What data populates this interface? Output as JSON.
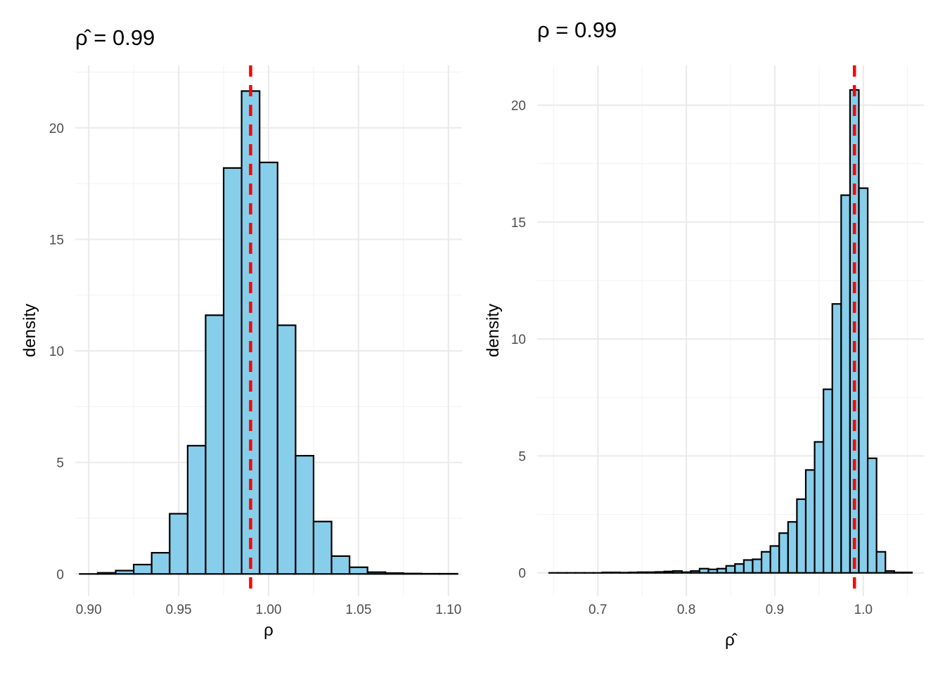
{
  "chart_data": [
    {
      "type": "bar",
      "title": "ρ̂ = 0.99",
      "xlabel": "ρ",
      "ylabel": "density",
      "bin_width": 0.01,
      "bin_centers": [
        0.9,
        0.91,
        0.92,
        0.93,
        0.94,
        0.95,
        0.96,
        0.97,
        0.98,
        0.99,
        1.0,
        1.01,
        1.02,
        1.03,
        1.04,
        1.05,
        1.06,
        1.07,
        1.08,
        1.09,
        1.1
      ],
      "values": [
        0.0,
        0.05,
        0.15,
        0.42,
        0.95,
        2.7,
        5.75,
        11.6,
        18.2,
        21.65,
        18.45,
        11.15,
        5.3,
        2.35,
        0.8,
        0.3,
        0.08,
        0.04,
        0.02,
        0.01,
        0.01
      ],
      "xlim": [
        0.8925,
        1.1075
      ],
      "ylim": [
        -1.0,
        22.8
      ],
      "x_ticks": [
        0.9,
        0.95,
        1.0,
        1.05,
        1.1
      ],
      "x_tick_labels": [
        "0.90",
        "0.95",
        "1.00",
        "1.05",
        "1.10"
      ],
      "y_ticks": [
        0,
        5,
        10,
        15,
        20
      ],
      "y_tick_labels": [
        "0",
        "5",
        "10",
        "15",
        "20"
      ],
      "reference_line": {
        "x": 0.99,
        "color": "#ff0000",
        "style": "dashed"
      },
      "bar_fill": "#87ceeb",
      "bar_stroke": "#000000",
      "grid": true
    },
    {
      "type": "bar",
      "title": "ρ = 0.99",
      "xlabel": "ρ̂",
      "ylabel": "density",
      "bin_width": 0.01,
      "bin_centers": [
        0.65,
        0.66,
        0.67,
        0.68,
        0.69,
        0.7,
        0.71,
        0.72,
        0.73,
        0.74,
        0.75,
        0.76,
        0.77,
        0.78,
        0.79,
        0.8,
        0.81,
        0.82,
        0.83,
        0.84,
        0.85,
        0.86,
        0.87,
        0.88,
        0.89,
        0.9,
        0.91,
        0.92,
        0.93,
        0.94,
        0.95,
        0.96,
        0.97,
        0.98,
        0.99,
        1.0,
        1.01,
        1.02,
        1.03,
        1.04,
        1.05
      ],
      "values": [
        0.0,
        0.0,
        0.0,
        0.0,
        0.0,
        0.0,
        0.02,
        0.02,
        0.01,
        0.02,
        0.03,
        0.03,
        0.04,
        0.06,
        0.08,
        0.03,
        0.08,
        0.18,
        0.15,
        0.18,
        0.3,
        0.38,
        0.55,
        0.58,
        0.9,
        1.15,
        1.7,
        2.18,
        3.15,
        4.4,
        5.6,
        7.85,
        11.5,
        16.15,
        20.65,
        16.45,
        4.9,
        0.9,
        0.08,
        0.02,
        0.02
      ],
      "xlim": [
        0.6315,
        1.0685
      ],
      "ylim": [
        -1.0,
        21.7
      ],
      "x_ticks": [
        0.7,
        0.8,
        0.9,
        1.0
      ],
      "x_tick_labels": [
        "0.7",
        "0.8",
        "0.9",
        "1.0"
      ],
      "y_ticks": [
        0,
        5,
        10,
        15,
        20
      ],
      "y_tick_labels": [
        "0",
        "5",
        "10",
        "15",
        "20"
      ],
      "reference_line": {
        "x": 0.99,
        "color": "#ff0000",
        "style": "dashed"
      },
      "bar_fill": "#87ceeb",
      "bar_stroke": "#000000",
      "grid": true
    }
  ]
}
